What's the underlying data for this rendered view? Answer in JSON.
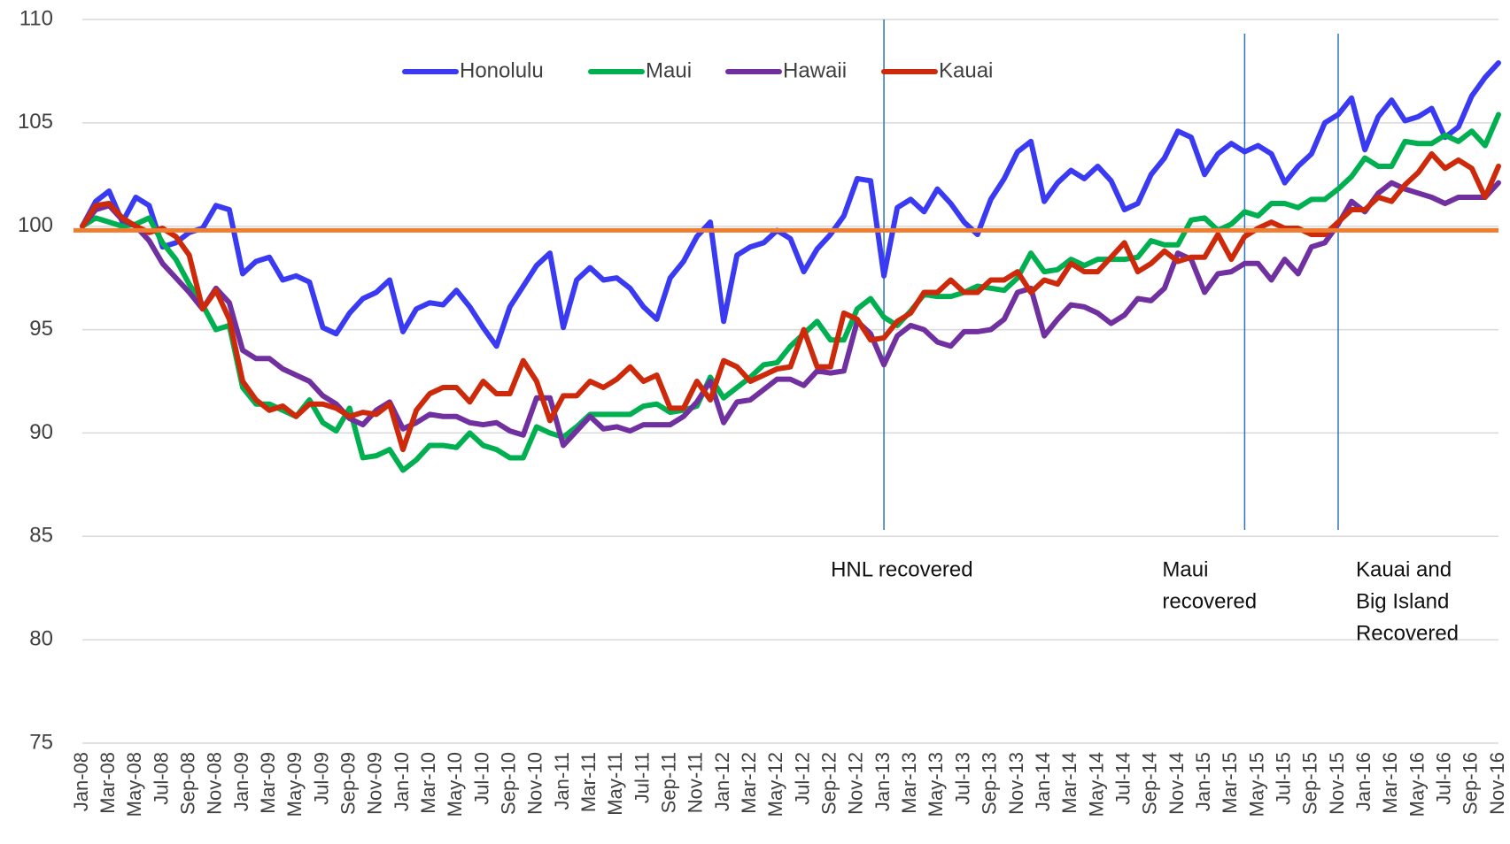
{
  "chart_data": {
    "type": "line",
    "categories": [
      "Jan-08",
      null,
      "Mar-08",
      null,
      "May-08",
      null,
      "Jul-08",
      null,
      "Sep-08",
      null,
      "Nov-08",
      null,
      "Jan-09",
      null,
      "Mar-09",
      null,
      "May-09",
      null,
      "Jul-09",
      null,
      "Sep-09",
      null,
      "Nov-09",
      null,
      "Jan-10",
      null,
      "Mar-10",
      null,
      "May-10",
      null,
      "Jul-10",
      null,
      "Sep-10",
      null,
      "Nov-10",
      null,
      "Jan-11",
      null,
      "Mar-11",
      null,
      "May-11",
      null,
      "Jul-11",
      null,
      "Sep-11",
      null,
      "Nov-11",
      null,
      "Jan-12",
      null,
      "Mar-12",
      null,
      "May-12",
      null,
      "Jul-12",
      null,
      "Sep-12",
      null,
      "Nov-12",
      null,
      "Jan-13",
      null,
      "Mar-13",
      null,
      "May-13",
      null,
      "Jul-13",
      null,
      "Sep-13",
      null,
      "Nov-13",
      null,
      "Jan-14",
      null,
      "Mar-14",
      null,
      "May-14",
      null,
      "Jul-14",
      null,
      "Sep-14",
      null,
      "Nov-14",
      null,
      "Jan-15",
      null,
      "Mar-15",
      null,
      "May-15",
      null,
      "Jul-15",
      null,
      "Sep-15",
      null,
      "Nov-15",
      null,
      "Jan-16",
      null,
      "Mar-16",
      null,
      "May-16",
      null,
      "Jul-16",
      null,
      "Sep-16",
      null,
      "Nov-16"
    ],
    "series": [
      {
        "name": "Honolulu",
        "color": "#3a3af2",
        "values": [
          100,
          101.2,
          101.7,
          100.2,
          101.4,
          101,
          99,
          99.2,
          99.7,
          99.9,
          101,
          100.8,
          97.7,
          98.3,
          98.5,
          97.4,
          97.6,
          97.3,
          95.1,
          94.8,
          95.8,
          96.5,
          96.8,
          97.4,
          94.9,
          96,
          96.3,
          96.2,
          96.9,
          96.1,
          95.1,
          94.2,
          96.1,
          97.1,
          98.1,
          98.7,
          95.1,
          97.4,
          98,
          97.4,
          97.5,
          97,
          96.1,
          95.5,
          97.5,
          98.3,
          99.5,
          100.2,
          95.4,
          98.6,
          99,
          99.2,
          99.8,
          99.4,
          97.8,
          98.9,
          99.6,
          100.5,
          102.3,
          102.2,
          97.6,
          100.9,
          101.3,
          100.7,
          101.8,
          101.1,
          100.2,
          99.6,
          101.3,
          102.3,
          103.6,
          104.1,
          101.2,
          102.1,
          102.7,
          102.3,
          102.9,
          102.2,
          100.8,
          101.1,
          102.5,
          103.3,
          104.6,
          104.3,
          102.5,
          103.5,
          104,
          103.6,
          103.9,
          103.5,
          102.1,
          102.9,
          103.5,
          105,
          105.4,
          106.2,
          103.7,
          105.3,
          106.1,
          105.1,
          105.3,
          105.7,
          104.3,
          104.8,
          106.3,
          107.2,
          107.9
        ]
      },
      {
        "name": "Maui",
        "color": "#00b050",
        "values": [
          100,
          100.4,
          100.2,
          100,
          100.1,
          100.4,
          99.2,
          98.4,
          97.2,
          96.2,
          95,
          95.2,
          92.2,
          91.4,
          91.4,
          91.1,
          90.8,
          91.6,
          90.5,
          90.1,
          91.2,
          88.8,
          88.9,
          89.2,
          88.2,
          88.7,
          89.4,
          89.4,
          89.3,
          90,
          89.4,
          89.2,
          88.8,
          88.8,
          90.3,
          90,
          89.8,
          90.3,
          90.9,
          90.9,
          90.9,
          90.9,
          91.3,
          91.4,
          91,
          91.1,
          91.3,
          92.7,
          91.7,
          92.2,
          92.7,
          93.3,
          93.4,
          94.2,
          94.8,
          95.4,
          94.5,
          94.5,
          96,
          96.5,
          95.6,
          95.2,
          95.9,
          96.7,
          96.6,
          96.6,
          96.8,
          97.1,
          97,
          96.9,
          97.5,
          98.7,
          97.8,
          97.9,
          98.4,
          98.1,
          98.4,
          98.4,
          98.4,
          98.5,
          99.3,
          99.1,
          99.1,
          100.3,
          100.4,
          99.8,
          100.1,
          100.7,
          100.5,
          101.1,
          101.1,
          100.9,
          101.3,
          101.3,
          101.8,
          102.4,
          103.3,
          102.9,
          102.9,
          104.1,
          104,
          104,
          104.4,
          104.1,
          104.6,
          103.9,
          105.4
        ]
      },
      {
        "name": "Hawaii",
        "color": "#7030a0",
        "values": [
          100,
          100.8,
          101,
          100.3,
          100,
          99.3,
          98.2,
          97.5,
          96.8,
          96,
          97,
          96.3,
          94,
          93.6,
          93.6,
          93.1,
          92.8,
          92.5,
          91.8,
          91.4,
          90.7,
          90.4,
          91.1,
          91.5,
          90.2,
          90.5,
          90.9,
          90.8,
          90.8,
          90.5,
          90.4,
          90.5,
          90.1,
          89.9,
          91.7,
          91.7,
          89.4,
          90.1,
          90.8,
          90.2,
          90.3,
          90.1,
          90.4,
          90.4,
          90.4,
          90.8,
          91.5,
          92.5,
          90.5,
          91.5,
          91.6,
          92.1,
          92.6,
          92.6,
          92.3,
          93,
          92.9,
          93,
          95.4,
          94.8,
          93.3,
          94.7,
          95.2,
          95,
          94.4,
          94.2,
          94.9,
          94.9,
          95,
          95.5,
          96.8,
          97,
          94.7,
          95.5,
          96.2,
          96.1,
          95.8,
          95.3,
          95.7,
          96.5,
          96.4,
          97,
          98.7,
          98.4,
          96.8,
          97.7,
          97.8,
          98.2,
          98.2,
          97.4,
          98.4,
          97.7,
          99,
          99.2,
          100.1,
          101.2,
          100.7,
          101.6,
          102.1,
          101.8,
          101.6,
          101.4,
          101.1,
          101.4,
          101.4,
          101.4,
          102.1
        ]
      },
      {
        "name": "Kauai",
        "color": "#cc2a0a",
        "values": [
          100,
          101,
          101.1,
          100.4,
          100,
          99.7,
          99.9,
          99.5,
          98.6,
          96,
          96.9,
          95.5,
          92.5,
          91.6,
          91.1,
          91.3,
          90.8,
          91.4,
          91.4,
          91.2,
          90.8,
          91,
          90.9,
          91.4,
          89.2,
          91.1,
          91.9,
          92.2,
          92.2,
          91.5,
          92.5,
          91.9,
          91.9,
          93.5,
          92.5,
          90.6,
          91.8,
          91.8,
          92.5,
          92.2,
          92.6,
          93.2,
          92.5,
          92.8,
          91.2,
          91.2,
          92.5,
          91.6,
          93.5,
          93.2,
          92.5,
          92.8,
          93.1,
          93.2,
          95,
          93.2,
          93.2,
          95.8,
          95.5,
          94.5,
          94.6,
          95.4,
          95.8,
          96.8,
          96.8,
          97.4,
          96.8,
          96.8,
          97.4,
          97.4,
          97.8,
          96.8,
          97.4,
          97.2,
          98.2,
          97.8,
          97.8,
          98.5,
          99.2,
          97.8,
          98.2,
          98.8,
          98.3,
          98.5,
          98.5,
          99.6,
          98.4,
          99.5,
          99.9,
          100.2,
          99.9,
          99.9,
          99.6,
          99.6,
          100.2,
          100.8,
          100.8,
          101.4,
          101.2,
          102,
          102.6,
          103.5,
          102.8,
          103.2,
          102.8,
          101.4,
          102.9
        ]
      }
    ],
    "reference_line": {
      "value": 99.8,
      "color": "#ed7d31"
    },
    "annotations": [
      {
        "at": 60,
        "lines": [
          "HNL recovered"
        ]
      },
      {
        "at": 87,
        "lines": [
          "Maui",
          "recovered"
        ]
      },
      {
        "at": 94,
        "lines": [
          "Kauai and",
          "Big Island",
          "Recovered"
        ]
      }
    ],
    "ylim": [
      75,
      110
    ],
    "yticks": [
      75,
      80,
      85,
      90,
      95,
      100,
      105,
      110
    ],
    "grid": true,
    "legend": "top"
  }
}
